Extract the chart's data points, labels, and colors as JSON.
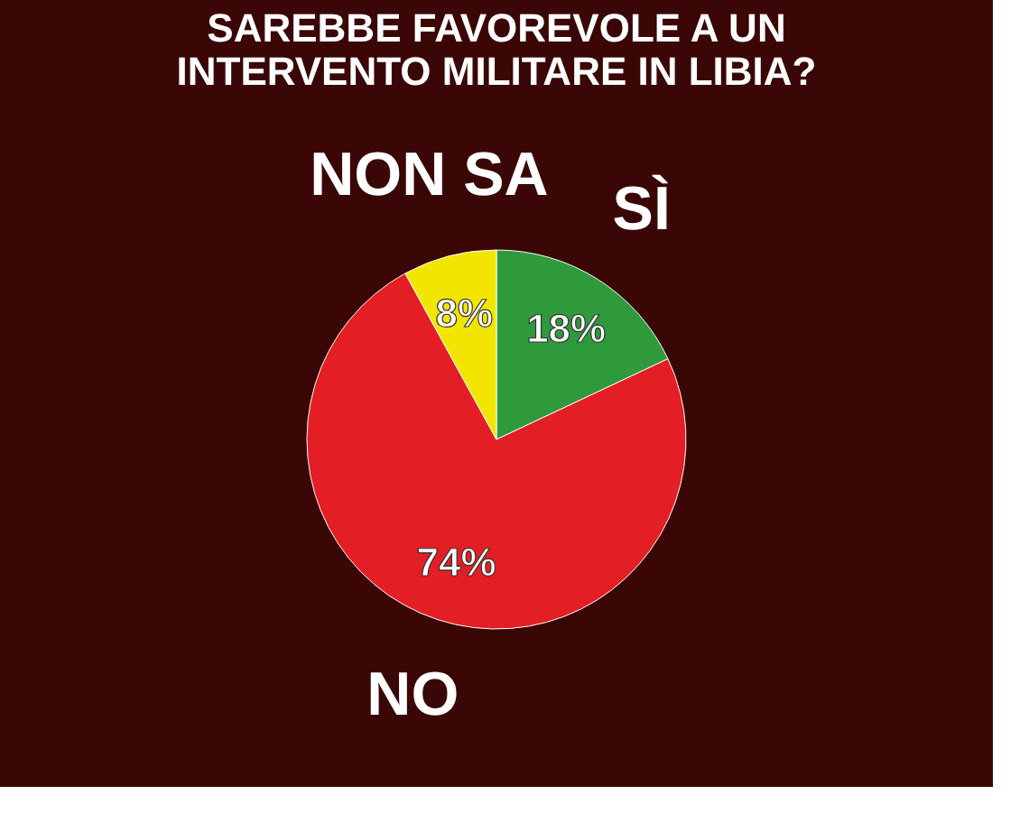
{
  "chart_data": {
    "type": "pie",
    "title": "SAREBBE FAVOREVOLE A UN INTERVENTO MILITARE IN LIBIA?",
    "categories": [
      "SÌ",
      "NO",
      "NON SA"
    ],
    "values": [
      18,
      74,
      8
    ],
    "value_labels": [
      "18%",
      "74%",
      "8%"
    ],
    "colors": [
      "#2e9a3c",
      "#e31e24",
      "#f2e600"
    ],
    "legend": false
  }
}
